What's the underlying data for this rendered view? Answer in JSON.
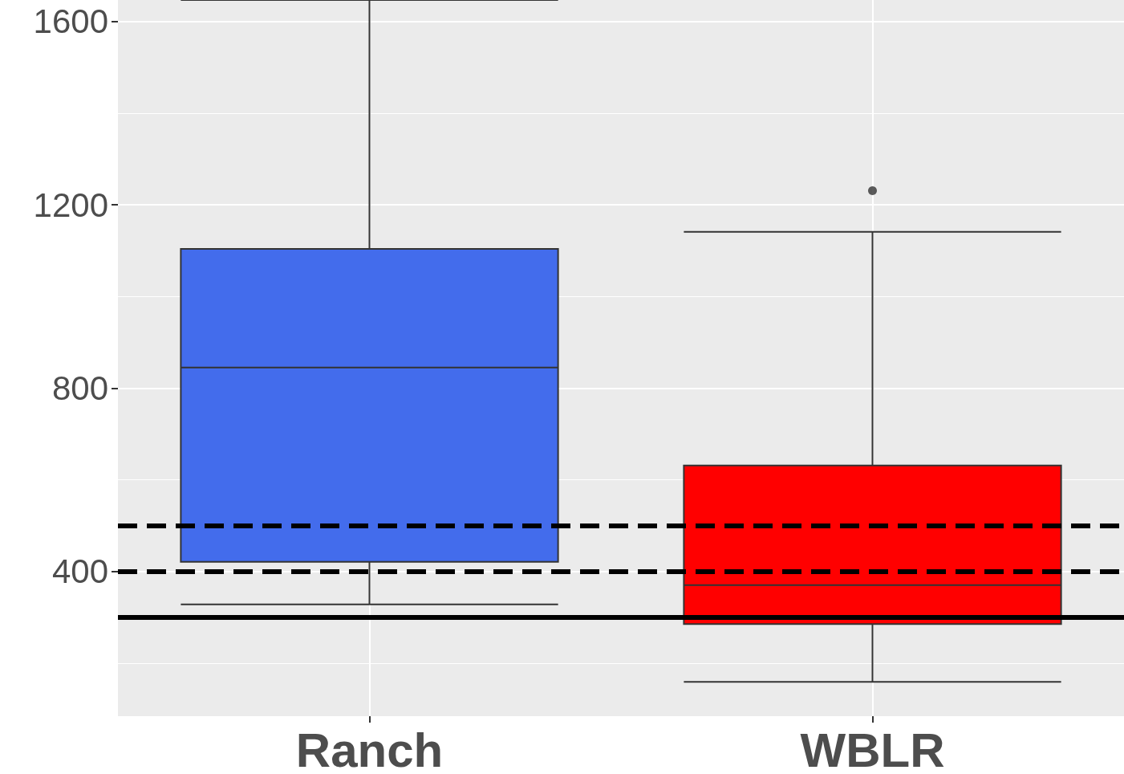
{
  "chart_data": {
    "type": "box",
    "categories": [
      "Ranch",
      "WBLR"
    ],
    "boxes": [
      {
        "low": 328,
        "q1": 421,
        "median": 845,
        "q3": 1104,
        "high": 1647
      },
      {
        "low": 159,
        "q1": 285,
        "median": 370,
        "q3": 631,
        "high": 1141,
        "outliers": [
          1231
        ]
      }
    ],
    "colors": [
      "#436cec",
      "#ff0000"
    ],
    "ylim": [
      84,
      1647
    ],
    "yticks": [
      {
        "value": 200,
        "label": null
      },
      400,
      {
        "value": 600,
        "label": null
      },
      800,
      {
        "value": 1000,
        "label": null
      },
      1200,
      {
        "value": 1400,
        "label": null
      },
      1600
    ],
    "ref_lines": [
      {
        "axis": "y",
        "value": 500,
        "line_style": "dashed",
        "color": "#000000"
      },
      {
        "axis": "y",
        "value": 400,
        "line_style": "dashed",
        "color": "#000000"
      },
      {
        "axis": "y",
        "value": 300,
        "line_style": "solid",
        "color": "#000000"
      }
    ],
    "grid": true
  }
}
